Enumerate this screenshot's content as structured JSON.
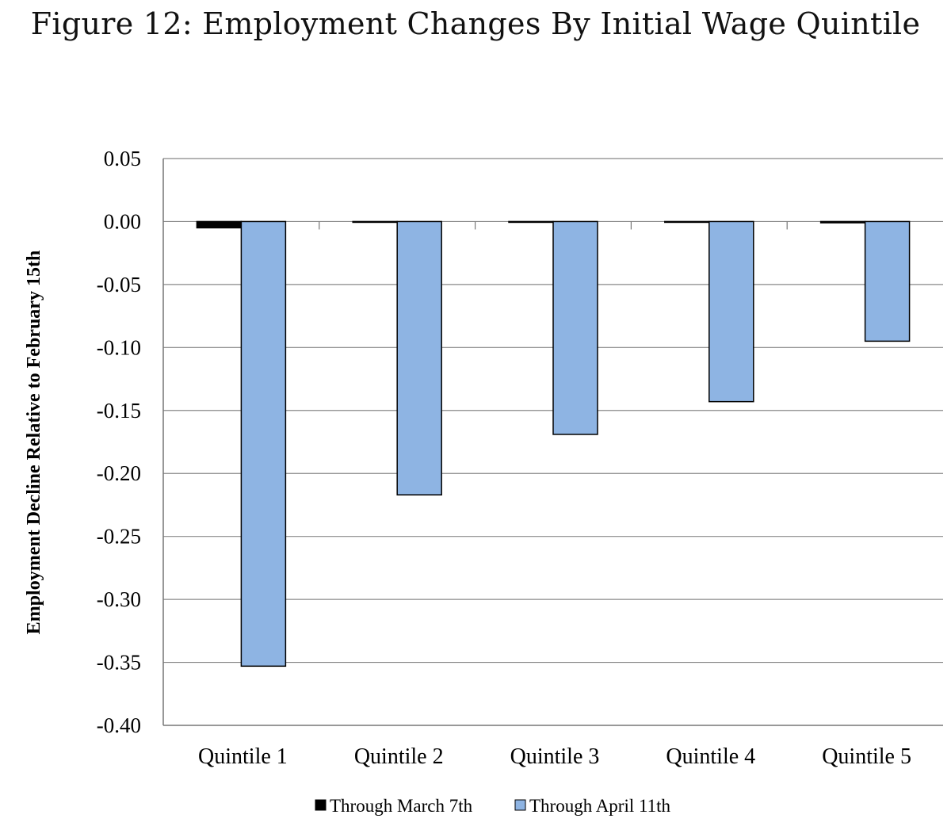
{
  "figure_title": "Figure 12: Employment Changes By Initial Wage Quintile",
  "colors": {
    "series1": "#000000",
    "series2": "#8eb4e3",
    "bar_outline": "#000000",
    "grid": "#888888"
  },
  "chart_data": {
    "type": "bar",
    "title": "",
    "xlabel": "",
    "ylabel": "Employment Decline  Relative to February 15th",
    "categories": [
      "Quintile 1",
      "Quintile 2",
      "Quintile 3",
      "Quintile 4",
      "Quintile 5"
    ],
    "series": [
      {
        "name": "Through March 7th",
        "values": [
          -0.005,
          0.0,
          0.0,
          0.0,
          -0.001
        ]
      },
      {
        "name": "Through April 11th",
        "values": [
          -0.353,
          -0.217,
          -0.169,
          -0.143,
          -0.095
        ]
      }
    ],
    "ylim": [
      -0.4,
      0.05
    ],
    "yticks": [
      "0.05",
      "0.00",
      "-0.05",
      "-0.10",
      "-0.15",
      "-0.20",
      "-0.25",
      "-0.30",
      "-0.35",
      "-0.40"
    ],
    "grid": true,
    "legend": "bottom-center"
  }
}
